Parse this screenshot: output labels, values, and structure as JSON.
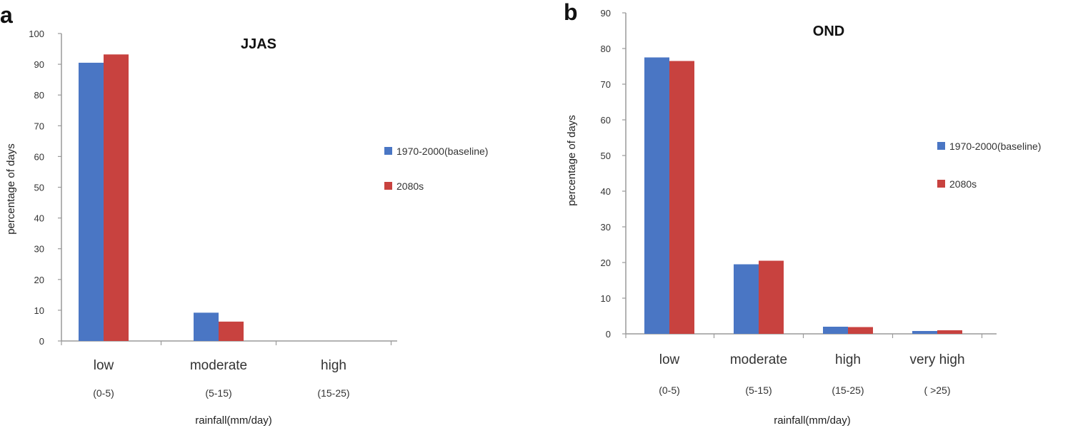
{
  "colors": {
    "baseline": "#4a76c4",
    "future": "#c8423f",
    "axis": "#9a9a9a",
    "text": "#333333"
  },
  "chart_data": [
    {
      "panel_label": "a",
      "type": "bar",
      "title": "JJAS",
      "xlabel": "rainfall(mm/day)",
      "ylabel": "percentage of days",
      "ylim": [
        0,
        100
      ],
      "yticks": [
        "0",
        "10",
        "20",
        "30",
        "40",
        "50",
        "60",
        "70",
        "80",
        "90",
        "100"
      ],
      "categories": [
        "low",
        "moderate",
        "high"
      ],
      "category_ranges": [
        "(0-5)",
        "(5-15)",
        "(15-25)"
      ],
      "series": [
        {
          "name": "1970-2000(baseline)",
          "values": [
            90.5,
            9.2,
            0
          ]
        },
        {
          "name": "2080s",
          "values": [
            93.2,
            6.3,
            0
          ]
        }
      ],
      "legend_position": "right",
      "grid": false
    },
    {
      "panel_label": "b",
      "type": "bar",
      "title": "OND",
      "xlabel": "rainfall(mm/day)",
      "ylabel": "percentage of days",
      "ylim": [
        0,
        90
      ],
      "yticks": [
        "0",
        "10",
        "20",
        "30",
        "40",
        "50",
        "60",
        "70",
        "80",
        "90"
      ],
      "categories": [
        "low",
        "moderate",
        "high",
        "very high"
      ],
      "category_ranges": [
        "(0-5)",
        "(5-15)",
        "(15-25)",
        "( >25)"
      ],
      "series": [
        {
          "name": "1970-2000(baseline)",
          "values": [
            77.5,
            19.5,
            2.0,
            0.8
          ]
        },
        {
          "name": "2080s",
          "values": [
            76.5,
            20.5,
            1.9,
            1.0
          ]
        }
      ],
      "legend_position": "right",
      "grid": false
    }
  ]
}
